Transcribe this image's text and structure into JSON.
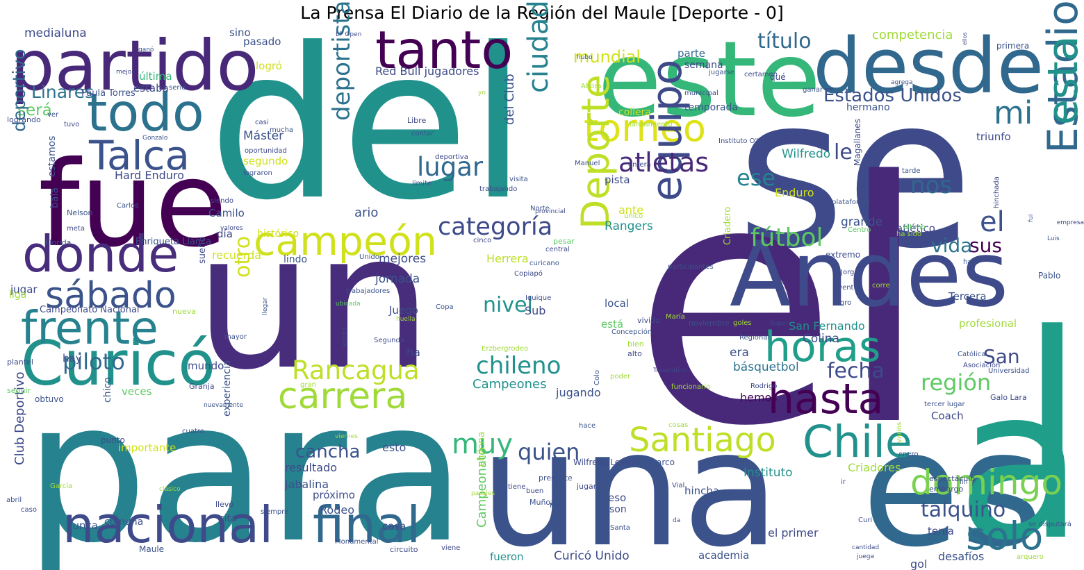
{
  "title": "La Prensa El Diario de la Región del Maule [Deporte - 0]",
  "words": [
    {
      "text": "del",
      "color": "#21918c"
    },
    {
      "text": "se",
      "color": "#3e4a89"
    },
    {
      "text": "el",
      "color": "#482878"
    },
    {
      "text": "una",
      "color": "#3b528b"
    },
    {
      "text": "es",
      "color": "#31688e"
    },
    {
      "text": "para",
      "color": "#26828e"
    },
    {
      "text": "un",
      "color": "#472d7b"
    },
    {
      "text": "fue",
      "color": "#440154"
    },
    {
      "text": "a",
      "color": "#1f9e89"
    },
    {
      "text": "este",
      "color": "#35b779"
    },
    {
      "text": "desde",
      "color": "#31688e"
    },
    {
      "text": "partido",
      "color": "#482878"
    },
    {
      "text": "tanto",
      "color": "#440154"
    },
    {
      "text": "todo",
      "color": "#2c728e"
    },
    {
      "text": "Andes",
      "color": "#3e4a89"
    },
    {
      "text": "I",
      "color": "#1f9e89"
    },
    {
      "text": "Talca",
      "color": "#3b528b"
    },
    {
      "text": "donde",
      "color": "#472d7b"
    },
    {
      "text": "Curicó",
      "color": "#21918c"
    },
    {
      "text": "frente",
      "color": "#26828e"
    },
    {
      "text": "sábado",
      "color": "#3b528b"
    },
    {
      "text": "nacional",
      "color": "#3e4a89"
    },
    {
      "text": "final",
      "color": "#31688e"
    },
    {
      "text": "solo",
      "color": "#2c728e"
    },
    {
      "text": "Chile",
      "color": "#21918c"
    },
    {
      "text": "horas",
      "color": "#1f9e89"
    },
    {
      "text": "hasta",
      "color": "#440154"
    },
    {
      "text": "campeón",
      "color": "#d0e11c"
    },
    {
      "text": "torneo",
      "color": "#dde318"
    },
    {
      "text": "Deporte",
      "color": "#bddf26"
    },
    {
      "text": "equipo",
      "color": "#3e4a89"
    },
    {
      "text": "carrera",
      "color": "#a0da39"
    },
    {
      "text": "Santiago",
      "color": "#bddf26"
    },
    {
      "text": "domingo",
      "color": "#7ad151"
    },
    {
      "text": "Estadio",
      "color": "#31688e"
    },
    {
      "text": "el",
      "color": "#3b528b"
    },
    {
      "text": "esta",
      "color": "#21918c"
    },
    {
      "text": "mi",
      "color": "#2c728e"
    },
    {
      "text": "ciudad",
      "color": "#26828e"
    },
    {
      "text": "deportista",
      "color": "#2c728e"
    },
    {
      "text": "atletas",
      "color": "#482878"
    },
    {
      "text": "lugar",
      "color": "#31688e"
    },
    {
      "text": "categoría",
      "color": "#3e4a89"
    },
    {
      "text": "fútbol",
      "color": "#5ec962"
    },
    {
      "text": "Rancagua",
      "color": "#bddf26"
    },
    {
      "text": "chileno",
      "color": "#21918c"
    },
    {
      "text": "muy",
      "color": "#35b779"
    },
    {
      "text": "quien",
      "color": "#3b528b"
    },
    {
      "text": "piloto",
      "color": "#31688e"
    },
    {
      "text": "región",
      "color": "#5ec962"
    },
    {
      "text": "fecha",
      "color": "#3e4a89"
    },
    {
      "text": "nos",
      "color": "#31688e"
    },
    {
      "text": "ese",
      "color": "#26828e"
    },
    {
      "text": "le",
      "color": "#3e4a89"
    },
    {
      "text": "San",
      "color": "#3e4a89"
    },
    {
      "text": "vida",
      "color": "#2c728e"
    },
    {
      "text": "sus",
      "color": "#440154"
    },
    {
      "text": "talquino",
      "color": "#3b528b"
    },
    {
      "text": "título",
      "color": "#31688e"
    },
    {
      "text": "mundial",
      "color": "#d0e11c"
    },
    {
      "text": "Estados Unidos",
      "color": "#3b528b"
    },
    {
      "text": "Linares",
      "color": "#2c728e"
    },
    {
      "text": "será",
      "color": "#5ec962"
    },
    {
      "text": "nivel",
      "color": "#21918c"
    },
    {
      "text": "otro",
      "color": "#d0e11c"
    },
    {
      "text": "cancha",
      "color": "#3b528b"
    },
    {
      "text": "deportivo",
      "color": "#31688e"
    },
    {
      "text": "Red Bull jugadores",
      "color": "#3e4a89"
    },
    {
      "text": "competencia",
      "color": "#a0da39"
    },
    {
      "text": "medialuna",
      "color": "#3e4a89"
    },
    {
      "text": "sino",
      "color": "#3b528b"
    },
    {
      "text": "pasado",
      "color": "#3b528b"
    },
    {
      "text": "logró",
      "color": "#d0e11c"
    },
    {
      "text": "última",
      "color": "#35b779"
    },
    {
      "text": "estaba",
      "color": "#3e4a89"
    },
    {
      "text": "Máster",
      "color": "#3b528b"
    },
    {
      "text": "segundo",
      "color": "#d0e11c"
    },
    {
      "text": "Hard Enduro",
      "color": "#3e4a89"
    },
    {
      "text": "del Club",
      "color": "#3b528b"
    },
    {
      "text": "Herrera",
      "color": "#bddf26"
    },
    {
      "text": "collera",
      "color": "#d0e11c"
    },
    {
      "text": "temporada",
      "color": "#3b528b"
    },
    {
      "text": "parte",
      "color": "#31688e"
    },
    {
      "text": "semana",
      "color": "#3e4a89"
    },
    {
      "text": "hermano",
      "color": "#3b528b"
    },
    {
      "text": "triunfo",
      "color": "#3e4a89"
    },
    {
      "text": "Wilfredo",
      "color": "#21918c"
    },
    {
      "text": "Enduro",
      "color": "#d0e11c"
    },
    {
      "text": "grande",
      "color": "#3b528b"
    },
    {
      "text": "atlético",
      "color": "#3e4a89"
    },
    {
      "text": "Rangers",
      "color": "#21918c"
    },
    {
      "text": "pista",
      "color": "#3e4a89"
    },
    {
      "text": "ante",
      "color": "#d0e11c"
    },
    {
      "text": "Camilo",
      "color": "#3b528b"
    },
    {
      "text": "histórico",
      "color": "#d0e11c"
    },
    {
      "text": "día",
      "color": "#3e4a89"
    },
    {
      "text": "recuerda",
      "color": "#d0e11c"
    },
    {
      "text": "ario",
      "color": "#3b528b"
    },
    {
      "text": "mejores",
      "color": "#3e4a89"
    },
    {
      "text": "jornada",
      "color": "#3b528b"
    },
    {
      "text": "Juego",
      "color": "#3e4a89"
    },
    {
      "text": "Sub",
      "color": "#3e4a89"
    },
    {
      "text": "local",
      "color": "#3b528b"
    },
    {
      "text": "está",
      "color": "#5ec962"
    },
    {
      "text": "profesional",
      "color": "#a0da39"
    },
    {
      "text": "San Fernando",
      "color": "#21918c"
    },
    {
      "text": "Colina",
      "color": "#3e4a89"
    },
    {
      "text": "Tercera",
      "color": "#3b528b"
    },
    {
      "text": "básquetbol",
      "color": "#2c728e"
    },
    {
      "text": "era",
      "color": "#3b528b"
    },
    {
      "text": "hemos",
      "color": "#440154"
    },
    {
      "text": "Coach",
      "color": "#3e4a89"
    },
    {
      "text": "Campeones",
      "color": "#21918c"
    },
    {
      "text": "jugando",
      "color": "#3b528b"
    },
    {
      "text": "ha",
      "color": "#3e4a89"
    },
    {
      "text": "hay",
      "color": "#3b528b"
    },
    {
      "text": "veces",
      "color": "#5ec962"
    },
    {
      "text": "mundo",
      "color": "#3e4a89"
    },
    {
      "text": "chico",
      "color": "#3b528b"
    },
    {
      "text": "importante",
      "color": "#d0e11c"
    },
    {
      "text": "esto",
      "color": "#3b528b"
    },
    {
      "text": "resultado",
      "color": "#3e4a89"
    },
    {
      "text": "jabalina",
      "color": "#3b528b"
    },
    {
      "text": "próximo",
      "color": "#3e4a89"
    },
    {
      "text": "Rodeo",
      "color": "#3b528b"
    },
    {
      "text": "casa",
      "color": "#3e4a89"
    },
    {
      "text": "comuna",
      "color": "#3b528b"
    },
    {
      "text": "cita",
      "color": "#3e4a89"
    },
    {
      "text": "nunca",
      "color": "#3b528b"
    },
    {
      "text": "Curicó Unido",
      "color": "#3e4a89"
    },
    {
      "text": "academia",
      "color": "#3b528b"
    },
    {
      "text": "fueron",
      "color": "#21918c"
    },
    {
      "text": "el primer",
      "color": "#3e4a89"
    },
    {
      "text": "hincha",
      "color": "#3b528b"
    },
    {
      "text": "eso",
      "color": "#3e4a89"
    },
    {
      "text": "son",
      "color": "#3b528b"
    },
    {
      "text": "Instituto",
      "color": "#21918c"
    },
    {
      "text": "Criadores",
      "color": "#a0da39"
    },
    {
      "text": "gol",
      "color": "#3e4a89"
    },
    {
      "text": "desafíos",
      "color": "#3b528b"
    },
    {
      "text": "tenía",
      "color": "#3e4a89"
    },
    {
      "text": "experiencia",
      "color": "#3b528b"
    },
    {
      "text": "Club Deportivo",
      "color": "#3e4a89"
    },
    {
      "text": "Campeonato",
      "color": "#5ec962"
    },
    {
      "text": "chilena",
      "color": "#a0da39"
    },
    {
      "text": "bala",
      "color": "#3e4a89"
    },
    {
      "text": "estamos",
      "color": "#3b528b"
    },
    {
      "text": "jugar",
      "color": "#3e4a89"
    },
    {
      "text": "liga",
      "color": "#a0da39"
    },
    {
      "text": "Campeonato Nacional",
      "color": "#3e4a89"
    },
    {
      "text": "Enriqueta Llanca",
      "color": "#3b528b"
    },
    {
      "text": "Florida",
      "color": "#3e4a89"
    },
    {
      "text": "Paula Torres",
      "color": "#3b528b"
    },
    {
      "text": "lograndо",
      "color": "#3e4a89"
    },
    {
      "text": "Gonzalo",
      "color": "#3b528b"
    },
    {
      "text": "oportunidad",
      "color": "#3e4a89"
    },
    {
      "text": "mucha",
      "color": "#3b528b"
    },
    {
      "text": "casi",
      "color": "#3e4a89"
    },
    {
      "text": "lograron",
      "color": "#3b528b"
    },
    {
      "text": "Libre",
      "color": "#3e4a89"
    },
    {
      "text": "contar",
      "color": "#3b528b"
    },
    {
      "text": "sueño",
      "color": "#3e4a89"
    },
    {
      "text": "lindo",
      "color": "#3b528b"
    },
    {
      "text": "plantel",
      "color": "#3e4a89"
    },
    {
      "text": "obtuvo",
      "color": "#3b528b"
    },
    {
      "text": "seguir",
      "color": "#5ec962"
    },
    {
      "text": "punto",
      "color": "#3e4a89"
    },
    {
      "text": "García",
      "color": "#a0da39"
    },
    {
      "text": "abril",
      "color": "#3b528b"
    },
    {
      "text": "caso",
      "color": "#3e4a89"
    },
    {
      "text": "siempre",
      "color": "#3b528b"
    },
    {
      "text": "llevó",
      "color": "#3e4a89"
    },
    {
      "text": "clásico",
      "color": "#a0da39"
    },
    {
      "text": "Maule",
      "color": "#3b528b"
    },
    {
      "text": "viene",
      "color": "#3e4a89"
    },
    {
      "text": "Muñoz",
      "color": "#3b528b"
    },
    {
      "text": "buen",
      "color": "#3e4a89"
    },
    {
      "text": "presente",
      "color": "#3b528b"
    },
    {
      "text": "Wilfredo Leyton",
      "color": "#3e4a89"
    },
    {
      "text": "arco",
      "color": "#3b528b"
    },
    {
      "text": "cosas",
      "color": "#a0da39"
    },
    {
      "text": "vivido",
      "color": "#3e4a89"
    },
    {
      "text": "María",
      "color": "#a0da39"
    },
    {
      "text": "noviembre",
      "color": "#3b528b"
    },
    {
      "text": "bien",
      "color": "#a0da39"
    },
    {
      "text": "alto",
      "color": "#3e4a89"
    },
    {
      "text": "Concepción",
      "color": "#3b528b"
    },
    {
      "text": "Erzbergrodeo",
      "color": "#a0da39"
    },
    {
      "text": "Segunda",
      "color": "#3e4a89"
    },
    {
      "text": "mayor",
      "color": "#3b528b"
    },
    {
      "text": "están",
      "color": "#3e4a89"
    },
    {
      "text": "Copa",
      "color": "#3b528b"
    },
    {
      "text": "Iquique",
      "color": "#3e4a89"
    },
    {
      "text": "trabajadores",
      "color": "#3b528b"
    },
    {
      "text": "ubicada",
      "color": "#5ec962"
    },
    {
      "text": "huella",
      "color": "#a0da39"
    },
    {
      "text": "Copiapó",
      "color": "#3e4a89"
    },
    {
      "text": "curicano",
      "color": "#3b528b"
    },
    {
      "text": "central",
      "color": "#3e4a89"
    },
    {
      "text": "pesar",
      "color": "#5ec962"
    },
    {
      "text": "Unido",
      "color": "#3b528b"
    },
    {
      "text": "cinco",
      "color": "#3e4a89"
    },
    {
      "text": "participantes",
      "color": "#3b528b"
    },
    {
      "text": "extremo",
      "color": "#3e4a89"
    },
    {
      "text": "hará",
      "color": "#3b528b"
    },
    {
      "text": "Jorge",
      "color": "#3e4a89"
    },
    {
      "text": "logro",
      "color": "#3b528b"
    },
    {
      "text": "corre",
      "color": "#a0da39"
    },
    {
      "text": "evento",
      "color": "#3e4a89"
    },
    {
      "text": "Pablo",
      "color": "#3b528b"
    },
    {
      "text": "goles",
      "color": "#a0da39"
    },
    {
      "text": "Super",
      "color": "#3e4a89"
    },
    {
      "text": "Regional",
      "color": "#3b528b"
    },
    {
      "text": "Rodrigo",
      "color": "#3e4a89"
    },
    {
      "text": "Católica",
      "color": "#3b528b"
    },
    {
      "text": "Asociación",
      "color": "#3e4a89"
    },
    {
      "text": "Universidad",
      "color": "#3b528b"
    },
    {
      "text": "Galo Lara",
      "color": "#3e4a89"
    },
    {
      "text": "tercer lugar",
      "color": "#3b528b"
    },
    {
      "text": "espectáculo",
      "color": "#3e4a89"
    },
    {
      "text": "fin",
      "color": "#3b528b"
    },
    {
      "text": "ir",
      "color": "#3e4a89"
    },
    {
      "text": "enero",
      "color": "#3b528b"
    },
    {
      "text": "varios",
      "color": "#a0da39"
    },
    {
      "text": "embargo",
      "color": "#3e4a89"
    },
    {
      "text": "Curi",
      "color": "#3b528b"
    },
    {
      "text": "juega",
      "color": "#3e4a89"
    },
    {
      "text": "se disputará",
      "color": "#3b528b"
    },
    {
      "text": "arquero",
      "color": "#a0da39"
    },
    {
      "text": "cantidad",
      "color": "#3e4a89"
    },
    {
      "text": "da",
      "color": "#3b528b"
    },
    {
      "text": "Vial",
      "color": "#3e4a89"
    },
    {
      "text": "Santa",
      "color": "#3b528b"
    },
    {
      "text": "tiene",
      "color": "#3e4a89"
    },
    {
      "text": "Red",
      "color": "#3b528b"
    },
    {
      "text": "jugará",
      "color": "#3e4a89"
    },
    {
      "text": "pasajes",
      "color": "#a0da39"
    },
    {
      "text": "viernes",
      "color": "#a0da39"
    },
    {
      "text": "Monumental",
      "color": "#3b528b"
    },
    {
      "text": "circuito",
      "color": "#3e4a89"
    },
    {
      "text": "hace",
      "color": "#3b528b"
    },
    {
      "text": "poder",
      "color": "#a0da39"
    },
    {
      "text": "funcionario",
      "color": "#a0da39"
    },
    {
      "text": "Trasandino",
      "color": "#3e4a89"
    },
    {
      "text": "Colo",
      "color": "#3b528b"
    },
    {
      "text": "gran",
      "color": "#a0da39"
    },
    {
      "text": "Granja",
      "color": "#3e4a89"
    },
    {
      "text": "nuevamente",
      "color": "#3b528b"
    },
    {
      "text": "cuatro",
      "color": "#3e4a89"
    },
    {
      "text": "ver",
      "color": "#3b528b"
    },
    {
      "text": "tuvo",
      "color": "#3e4a89"
    },
    {
      "text": "Nelson",
      "color": "#3b528b"
    },
    {
      "text": "meta",
      "color": "#3e4a89"
    },
    {
      "text": "Carlos",
      "color": "#3b528b"
    },
    {
      "text": "valores",
      "color": "#3e4a89"
    },
    {
      "text": "nueva",
      "color": "#a0da39"
    },
    {
      "text": "llegar",
      "color": "#3b528b"
    },
    {
      "text": "siendo",
      "color": "#3e4a89"
    },
    {
      "text": "límite",
      "color": "#3b528b"
    },
    {
      "text": "deportiva",
      "color": "#3e4a89"
    },
    {
      "text": "Manuel",
      "color": "#3b528b"
    },
    {
      "text": "entera",
      "color": "#3e4a89"
    },
    {
      "text": "visita",
      "color": "#3b528b"
    },
    {
      "text": "trabajando",
      "color": "#3e4a89"
    },
    {
      "text": "Norte",
      "color": "#3b528b"
    },
    {
      "text": "provincial",
      "color": "#3e4a89"
    },
    {
      "text": "único",
      "color": "#a0da39"
    },
    {
      "text": "lanzamiento",
      "color": "#a0da39"
    },
    {
      "text": "Instituto O'Higgins",
      "color": "#3e4a89"
    },
    {
      "text": "plataforma",
      "color": "#3b528b"
    },
    {
      "text": "Magallanes",
      "color": "#3e4a89"
    },
    {
      "text": "tarde",
      "color": "#3b528b"
    },
    {
      "text": "hinchada",
      "color": "#3e4a89"
    },
    {
      "text": "ha sido",
      "color": "#a0da39"
    },
    {
      "text": "Centro",
      "color": "#5ec962"
    },
    {
      "text": "último",
      "color": "#5ec962"
    },
    {
      "text": "fui",
      "color": "#3b528b"
    },
    {
      "text": "empresa",
      "color": "#3e4a89"
    },
    {
      "text": "Criadero",
      "color": "#a0da39"
    },
    {
      "text": "Luis",
      "color": "#3b528b"
    },
    {
      "text": "Estadio",
      "color": "#3e4a89"
    },
    {
      "text": "agrega",
      "color": "#3b528b"
    },
    {
      "text": "ellos",
      "color": "#3e4a89"
    },
    {
      "text": "primera",
      "color": "#3b528b"
    },
    {
      "text": "qué",
      "color": "#3e4a89"
    },
    {
      "text": "ganar",
      "color": "#3b528b"
    },
    {
      "text": "certamen",
      "color": "#3e4a89"
    },
    {
      "text": "jugarse",
      "color": "#3b528b"
    },
    {
      "text": "municipal",
      "color": "#3e4a89"
    },
    {
      "text": "Ahora",
      "color": "#a0da39"
    },
    {
      "text": "hubo",
      "color": "#3b528b"
    },
    {
      "text": "LP Open",
      "color": "#3e4a89"
    },
    {
      "text": "ganó",
      "color": "#3b528b"
    },
    {
      "text": "mejor",
      "color": "#3e4a89"
    },
    {
      "text": "serie",
      "color": "#3b528b"
    },
    {
      "text": "yo",
      "color": "#a0da39"
    }
  ]
}
